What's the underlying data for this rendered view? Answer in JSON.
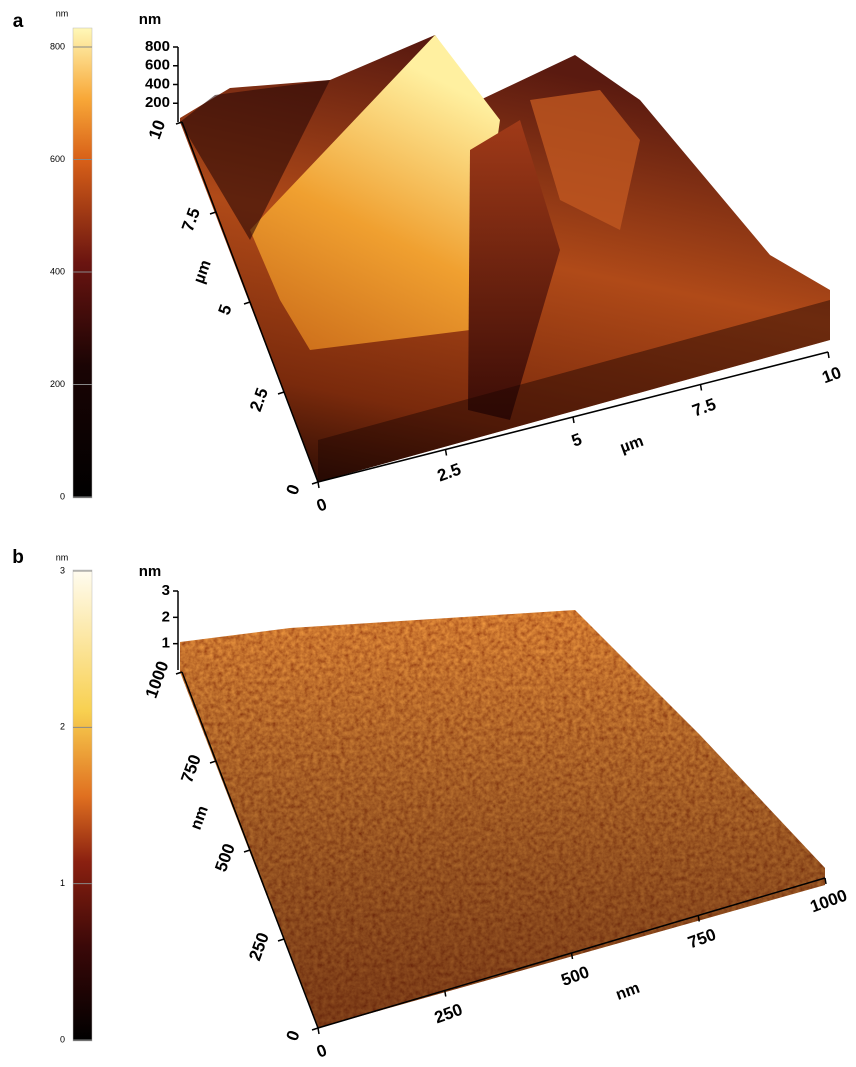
{
  "panels": [
    {
      "label": "a",
      "colorbar": {
        "unit": "nm",
        "ticks": [
          0,
          200,
          400,
          600,
          800
        ]
      },
      "z_axis": {
        "unit": "nm",
        "ticks": [
          200,
          400,
          600,
          800
        ]
      },
      "y_axis": {
        "unit": "µm",
        "ticks": [
          0,
          2.5,
          5,
          7.5,
          10
        ]
      },
      "x_axis": {
        "unit": "µm",
        "ticks": [
          0,
          2.5,
          5,
          7.5,
          10
        ]
      }
    },
    {
      "label": "b",
      "colorbar": {
        "unit": "nm",
        "ticks": [
          0,
          1,
          2,
          3
        ]
      },
      "z_axis": {
        "unit": "nm",
        "ticks": [
          1,
          2,
          3
        ]
      },
      "y_axis": {
        "unit": "nm",
        "ticks": [
          0,
          250,
          500,
          750,
          1000
        ]
      },
      "x_axis": {
        "unit": "nm",
        "ticks": [
          0,
          250,
          500,
          750,
          1000
        ]
      }
    }
  ]
}
